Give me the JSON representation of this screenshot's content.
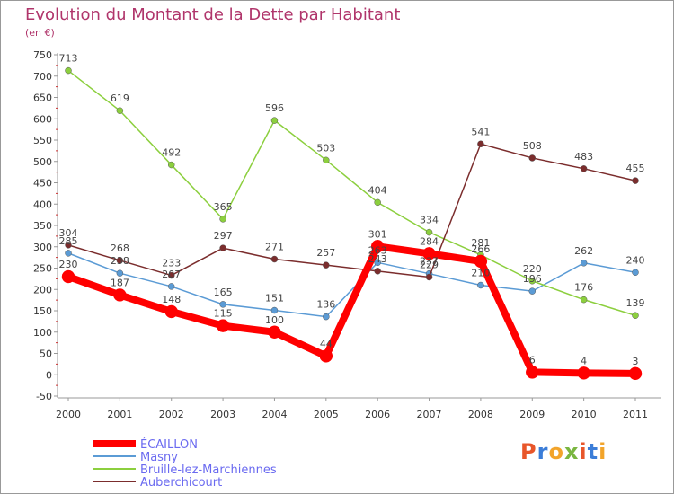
{
  "title": "Evolution du Montant de la Dette par Habitant",
  "unit": "(en €)",
  "logo": {
    "text": "Proxiti"
  },
  "chart_data": {
    "type": "line",
    "title": "Evolution du Montant de la Dette par Habitant",
    "ylabel": "(en €)",
    "xlabel": "",
    "x": [
      "2000",
      "2001",
      "2002",
      "2003",
      "2004",
      "2005",
      "2006",
      "2007",
      "2008",
      "2009",
      "2010",
      "2011"
    ],
    "ylim": [
      -50,
      750
    ],
    "ystep": 50,
    "grid": false,
    "legend": "bottom-left",
    "series": [
      {
        "name": "ÉCAILLON",
        "color": "#ff0000",
        "width": 8,
        "values": [
          230,
          187,
          148,
          115,
          100,
          44,
          301,
          284,
          266,
          6,
          4,
          3
        ]
      },
      {
        "name": "Masny",
        "color": "#5b9bd5",
        "width": 1.5,
        "values": [
          285,
          238,
          207,
          165,
          151,
          136,
          263,
          237,
          210,
          196,
          262,
          240
        ]
      },
      {
        "name": "Bruille-lez-Marchiennes",
        "color": "#8ccf3e",
        "width": 1.5,
        "values": [
          713,
          619,
          492,
          365,
          596,
          503,
          404,
          334,
          281,
          220,
          176,
          139
        ]
      },
      {
        "name": "Auberchicourt",
        "color": "#7b2d2d",
        "width": 1.5,
        "values": [
          304,
          268,
          233,
          297,
          271,
          257,
          243,
          229,
          541,
          508,
          483,
          455
        ]
      }
    ]
  }
}
